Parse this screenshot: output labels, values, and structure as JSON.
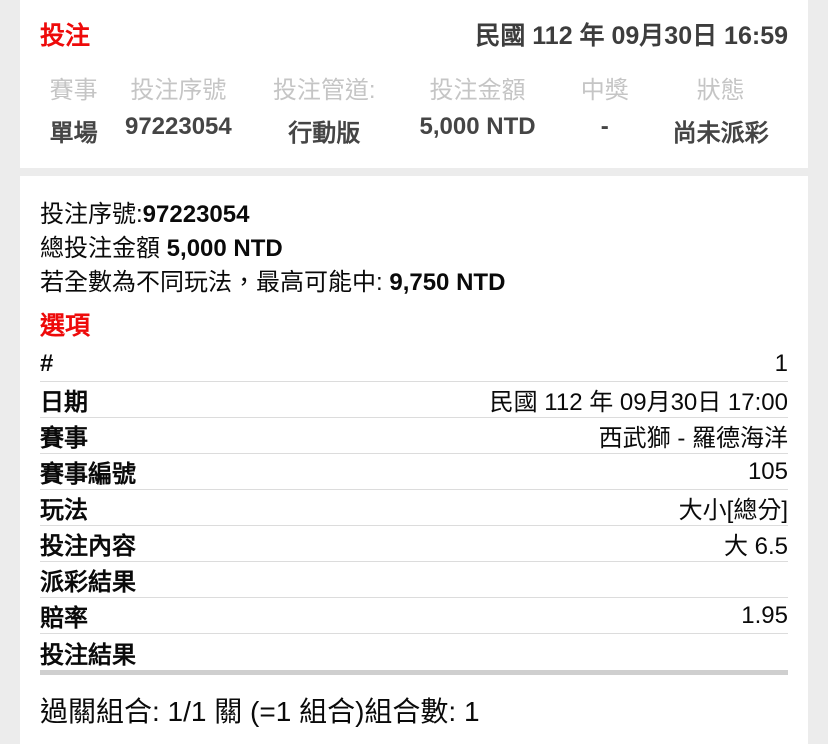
{
  "header": {
    "title": "投注",
    "datetime": "民國 112 年 09月30日 16:59"
  },
  "summary": {
    "columns": [
      {
        "label": "賽事",
        "value": "單場"
      },
      {
        "label": "投注序號",
        "value": "97223054"
      },
      {
        "label": "投注管道:",
        "value": "行動版"
      },
      {
        "label": "投注金額",
        "value": "5,000 NTD"
      },
      {
        "label": "中獎",
        "value": "-"
      },
      {
        "label": "狀態",
        "value": "尚未派彩"
      }
    ]
  },
  "detail": {
    "serial_label": "投注序號:",
    "serial_value": "97223054",
    "total_label": "總投注金額 ",
    "total_value": "5,000 NTD",
    "max_win_label": "若全數為不同玩法，最高可能中: ",
    "max_win_value": "9,750 NTD",
    "options_title": "選項",
    "rows": [
      {
        "label": "#",
        "value": "1"
      },
      {
        "label": "日期",
        "value": "民國 112 年 09月30日 17:00"
      },
      {
        "label": "賽事",
        "value": "西武獅 - 羅德海洋"
      },
      {
        "label": "賽事編號",
        "value": "105"
      },
      {
        "label": "玩法",
        "value": "大小[總分]"
      },
      {
        "label": "投注內容",
        "value": "大 6.5"
      },
      {
        "label": "派彩結果",
        "value": ""
      },
      {
        "label": "賠率",
        "value": "1.95"
      },
      {
        "label": "投注結果",
        "value": ""
      }
    ],
    "combo_text": "過關組合: 1/1 關 (=1 組合)組合數: 1"
  },
  "colors": {
    "accent_red": "#ee0a0a",
    "page_background": "#ececec",
    "card_background": "#ffffff",
    "muted_header_text": "#c5c5c5",
    "summary_value_text": "#454545",
    "row_divider": "#dcdcdc",
    "thick_divider": "#cfcfcf"
  }
}
